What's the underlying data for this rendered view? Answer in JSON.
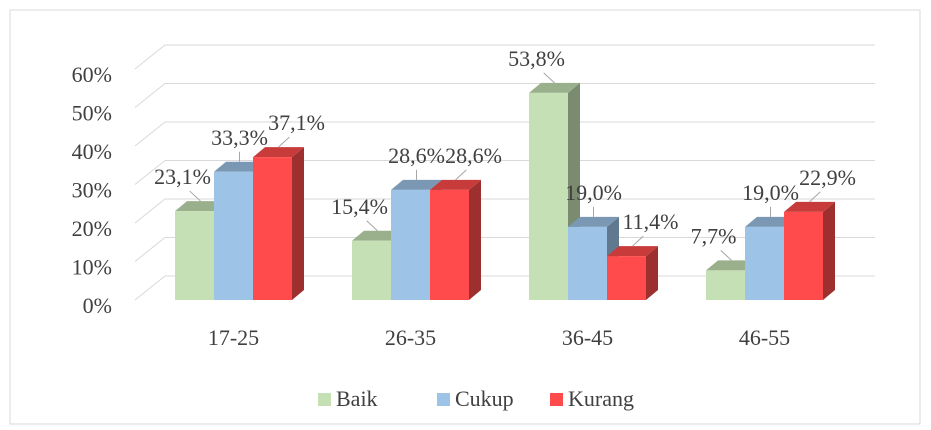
{
  "chart_data": {
    "type": "bar3d",
    "categories": [
      "17-25",
      "26-35",
      "36-45",
      "46-55"
    ],
    "series": [
      {
        "name": "Baik",
        "color": "#c5e0b4",
        "values": [
          23.1,
          15.4,
          53.8,
          7.7
        ],
        "value_labels": [
          "23,1%",
          "15,4%",
          "53,8%",
          "7,7%"
        ]
      },
      {
        "name": "Cukup",
        "color": "#9dc3e6",
        "values": [
          33.3,
          28.6,
          19.0,
          19.0
        ],
        "value_labels": [
          "33,3%",
          "28,6%",
          "19,0%",
          "19,0%"
        ]
      },
      {
        "name": "Kurang",
        "color": "#ff4b4b",
        "values": [
          37.1,
          28.6,
          11.4,
          22.9
        ],
        "value_labels": [
          "37,1%",
          "28,6%",
          "11,4%",
          "22,9%"
        ]
      }
    ],
    "ylim": [
      0,
      60
    ],
    "yticks": [
      {
        "value": 0,
        "label": "0%"
      },
      {
        "value": 10,
        "label": "10%"
      },
      {
        "value": 20,
        "label": "20%"
      },
      {
        "value": 30,
        "label": "30%"
      },
      {
        "value": 40,
        "label": "40%"
      },
      {
        "value": 50,
        "label": "50%"
      },
      {
        "value": 60,
        "label": "60%"
      }
    ],
    "grid": true,
    "legend": "bottom"
  }
}
